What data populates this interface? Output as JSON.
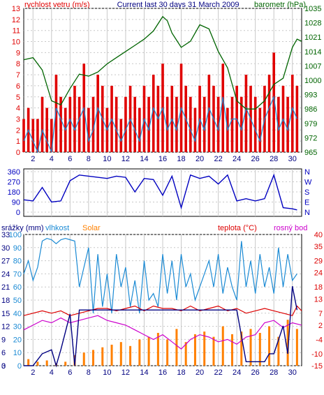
{
  "header": {
    "title": "Current last 30 days 31 March 2009"
  },
  "colors": {
    "wind": "#e00000",
    "gust_line": "#1a8ad4",
    "pressure": "#006400",
    "direction": "#0000c0",
    "humidity": "#1a8ad4",
    "rain": "#000080",
    "solar": "#ff8000",
    "temperature": "#dd0000",
    "dewpoint": "#cc00cc",
    "grid": "#c8c8c8"
  },
  "chart_data": [
    {
      "type": "line",
      "title": "Current last 30 days 31 March 2009",
      "ylabel": "rychlost vetru (m/s)",
      "y2label": "barometr (hPa)",
      "x_ticks": [
        "2",
        "4",
        "6",
        "8",
        "10",
        "12",
        "14",
        "16",
        "18",
        "20",
        "22",
        "24",
        "26",
        "28",
        "30"
      ],
      "xlim": [
        1,
        31
      ],
      "ylim": [
        0,
        13
      ],
      "y_ticks": [
        "0",
        "1",
        "2",
        "3",
        "4",
        "5",
        "6",
        "7",
        "8",
        "9",
        "10",
        "11",
        "12",
        "13"
      ],
      "y2lim": [
        965,
        1035
      ],
      "y2_ticks": [
        "965",
        "972",
        "979",
        "986",
        "993",
        "1000",
        "1007",
        "1014",
        "1021",
        "1028",
        "1035"
      ],
      "series": [
        {
          "key": "wind_max",
          "style": "bar",
          "x": [
            1,
            1.5,
            2,
            2.5,
            3,
            3.5,
            4,
            4.5,
            5,
            5.5,
            6,
            6.5,
            7,
            7.5,
            8,
            8.5,
            9,
            9.5,
            10,
            10.5,
            11,
            11.5,
            12,
            12.5,
            13,
            13.5,
            14,
            14.5,
            15,
            15.5,
            16,
            16.5,
            17,
            17.5,
            18,
            18.5,
            19,
            19.5,
            20,
            20.5,
            21,
            21.5,
            22,
            22.5,
            23,
            23.5,
            24,
            24.5,
            25,
            25.5,
            26,
            26.5,
            27,
            27.5,
            28,
            28.5,
            29,
            29.5,
            30,
            30.5
          ],
          "values": [
            3,
            4,
            3,
            3,
            5,
            4,
            3,
            7,
            5,
            4,
            5,
            6,
            5,
            8,
            4,
            5,
            7,
            6,
            4,
            6,
            5,
            3,
            5,
            6,
            5,
            4,
            6,
            5,
            7,
            6,
            8,
            5,
            6,
            5,
            8,
            6,
            5,
            4,
            6,
            5,
            7,
            6,
            5,
            8,
            4,
            5,
            6,
            5,
            7,
            6,
            5,
            4,
            6,
            7,
            9,
            5,
            6,
            5,
            7,
            6
          ]
        },
        {
          "key": "wind_avg",
          "style": "line",
          "x": [
            1,
            1.5,
            2,
            2.5,
            3,
            3.5,
            4,
            4.5,
            5,
            5.5,
            6,
            6.5,
            7,
            7.5,
            8,
            8.5,
            9,
            9.5,
            10,
            10.5,
            11,
            11.5,
            12,
            12.5,
            13,
            13.5,
            14,
            14.5,
            15,
            15.5,
            16,
            16.5,
            17,
            17.5,
            18,
            18.5,
            19,
            19.5,
            20,
            20.5,
            21,
            21.5,
            22,
            22.5,
            23,
            23.5,
            24,
            24.5,
            25,
            25.5,
            26,
            26.5,
            27,
            27.5,
            28,
            28.5,
            29,
            29.5,
            30,
            30.5
          ],
          "values": [
            1,
            2,
            1,
            0,
            2,
            1,
            0,
            4,
            3,
            2,
            3,
            2,
            3,
            4,
            1,
            2,
            4,
            3,
            2,
            3,
            2,
            1,
            2,
            3,
            2,
            1,
            3,
            2,
            4,
            3,
            4,
            2,
            3,
            2,
            4,
            3,
            2,
            1,
            3,
            2,
            4,
            3,
            2,
            5,
            2,
            3,
            3,
            2,
            4,
            3,
            2,
            1,
            3,
            4,
            5,
            2,
            3,
            2,
            4,
            3
          ]
        },
        {
          "key": "pressure",
          "style": "line",
          "axis": "right",
          "x": [
            1,
            2,
            3,
            4,
            5,
            6,
            7,
            8,
            9,
            10,
            11,
            12,
            13,
            14,
            15,
            16,
            16.5,
            17,
            18,
            19,
            20,
            21,
            22,
            23,
            24,
            25,
            26,
            27,
            28,
            29,
            30,
            30.5,
            31
          ],
          "values": [
            1010,
            1011,
            1005,
            990,
            988,
            996,
            1003,
            1002,
            1004,
            1008,
            1011,
            1014,
            1017,
            1020,
            1024,
            1031,
            1029,
            1023,
            1016,
            1019,
            1027,
            1025,
            1014,
            1006,
            990,
            986,
            986,
            990,
            998,
            1001,
            1016,
            1020,
            1019
          ]
        }
      ]
    },
    {
      "type": "line",
      "ylim": [
        0,
        360
      ],
      "y_ticks": [
        "0",
        "90",
        "180",
        "270",
        "360"
      ],
      "y2_ticks": [
        "N",
        "W",
        "S",
        "E",
        "N"
      ],
      "xlim": [
        1,
        31
      ],
      "series": [
        {
          "key": "wind_direction",
          "x": [
            1,
            2,
            3,
            4,
            5,
            6,
            7,
            8,
            9,
            10,
            11,
            12,
            13,
            14,
            15,
            16,
            17,
            18,
            19,
            20,
            21,
            22,
            23,
            24,
            25,
            26,
            27,
            28,
            29,
            30,
            30.5
          ],
          "values": [
            110,
            100,
            220,
            90,
            100,
            280,
            330,
            320,
            310,
            300,
            320,
            310,
            180,
            300,
            290,
            150,
            320,
            40,
            330,
            300,
            320,
            250,
            330,
            100,
            120,
            100,
            120,
            330,
            40,
            30,
            20
          ]
        }
      ]
    },
    {
      "type": "line",
      "legend": [
        "srážky (mm)",
        "vlhkost",
        "Solar",
        "teplota (°C)",
        "rosný bod"
      ],
      "x_ticks": [
        "2",
        "4",
        "6",
        "8",
        "10",
        "12",
        "14",
        "16",
        "18",
        "20",
        "22",
        "24",
        "26",
        "28",
        "30"
      ],
      "xlim": [
        1,
        31
      ],
      "y_ticks": [
        "0",
        "0",
        "10",
        "20",
        "30",
        "40",
        "50",
        "60",
        "70",
        "80",
        "90",
        "100"
      ],
      "y_ticks_rain": [
        "0",
        "3",
        "6",
        "9",
        "12",
        "15",
        "18",
        "21",
        "24",
        "27",
        "30",
        "33"
      ],
      "y2_ticks": [
        "-15",
        "-10",
        "-4",
        "2",
        "7",
        "13",
        "18",
        "24",
        "29",
        "35",
        "40"
      ],
      "ylim": [
        0,
        100
      ],
      "y2lim": [
        -15,
        40
      ],
      "series": [
        {
          "key": "humidity",
          "axis": "left",
          "x": [
            1,
            1.5,
            2,
            2.5,
            3,
            3.5,
            4,
            4.5,
            5,
            5.5,
            6,
            6.5,
            7,
            7.5,
            8,
            8.5,
            9,
            9.5,
            10,
            10.5,
            11,
            11.5,
            12,
            12.5,
            13,
            13.5,
            14,
            14.5,
            15,
            15.5,
            16,
            16.5,
            17,
            17.5,
            18,
            18.5,
            19,
            19.5,
            20,
            20.5,
            21,
            21.5,
            22,
            22.5,
            23,
            23.5,
            24,
            24.5,
            25,
            25.5,
            26,
            26.5,
            27,
            27.5,
            28,
            28.5,
            29,
            29.5,
            30,
            30.5
          ],
          "values": [
            70,
            80,
            65,
            75,
            95,
            97,
            96,
            93,
            96,
            97,
            96,
            95,
            60,
            75,
            90,
            40,
            85,
            45,
            70,
            40,
            85,
            60,
            75,
            45,
            65,
            40,
            80,
            50,
            55,
            45,
            85,
            55,
            80,
            50,
            85,
            60,
            70,
            50,
            60,
            70,
            80,
            60,
            85,
            55,
            75,
            60,
            50,
            95,
            60,
            80,
            55,
            85,
            60,
            75,
            55,
            90,
            60,
            85,
            65,
            70
          ]
        },
        {
          "key": "rain",
          "axis": "rain",
          "x": [
            1,
            2,
            3,
            4,
            4.5,
            5,
            6,
            6.5,
            7,
            8,
            9,
            10,
            12,
            14,
            16,
            18,
            20,
            22,
            24,
            25,
            26,
            27,
            27.5,
            28,
            29,
            29.5,
            30,
            30.5
          ],
          "values": [
            0,
            0,
            3,
            4,
            0,
            4,
            13,
            0,
            14,
            14,
            14,
            14,
            14,
            14,
            14,
            14,
            14,
            14,
            14,
            1,
            1,
            1,
            3,
            3,
            10,
            3,
            20,
            14
          ]
        },
        {
          "key": "solar",
          "axis": "left",
          "x": [
            1.5,
            2.5,
            3.5,
            4.5,
            5.5,
            6.5,
            7.5,
            8.5,
            9.5,
            10.5,
            11.5,
            12.5,
            13.5,
            14.5,
            15.5,
            16.5,
            17.5,
            18.5,
            19.5,
            20.5,
            21.5,
            22.5,
            23.5,
            24.5,
            25.5,
            26.5,
            27.5,
            28.5,
            29.5,
            30.5
          ],
          "values": [
            5,
            3,
            4,
            2,
            3,
            8,
            10,
            12,
            14,
            16,
            18,
            15,
            20,
            22,
            25,
            20,
            28,
            18,
            24,
            26,
            22,
            30,
            24,
            26,
            28,
            25,
            30,
            22,
            35,
            28
          ]
        },
        {
          "key": "temperature",
          "axis": "right",
          "x": [
            1,
            2,
            3,
            4,
            5,
            6,
            7,
            8,
            9,
            10,
            11,
            12,
            13,
            14,
            15,
            16,
            17,
            18,
            19,
            20,
            21,
            22,
            23,
            24,
            25,
            26,
            27,
            28,
            29,
            30,
            30.5,
            31
          ],
          "values": [
            6,
            7,
            8,
            7,
            8,
            6,
            7,
            8,
            9,
            9,
            8,
            9,
            10,
            8,
            10,
            9,
            9,
            8,
            10,
            8,
            9,
            10,
            8,
            9,
            7,
            8,
            9,
            8,
            7,
            6,
            10,
            8
          ]
        },
        {
          "key": "dewpoint",
          "axis": "right",
          "x": [
            1,
            2,
            3,
            4,
            5,
            6,
            7,
            8,
            9,
            10,
            11,
            12,
            13,
            14,
            15,
            16,
            17,
            18,
            19,
            20,
            21,
            22,
            23,
            24,
            25,
            26,
            27,
            28,
            29,
            30,
            31
          ],
          "values": [
            0,
            2,
            4,
            3,
            5,
            3,
            4,
            5,
            6,
            4,
            3,
            2,
            0,
            -2,
            -4,
            -2,
            -5,
            -8,
            -4,
            -2,
            -3,
            -5,
            -4,
            -6,
            -3,
            -2,
            3,
            4,
            1,
            3,
            2
          ]
        }
      ]
    }
  ]
}
